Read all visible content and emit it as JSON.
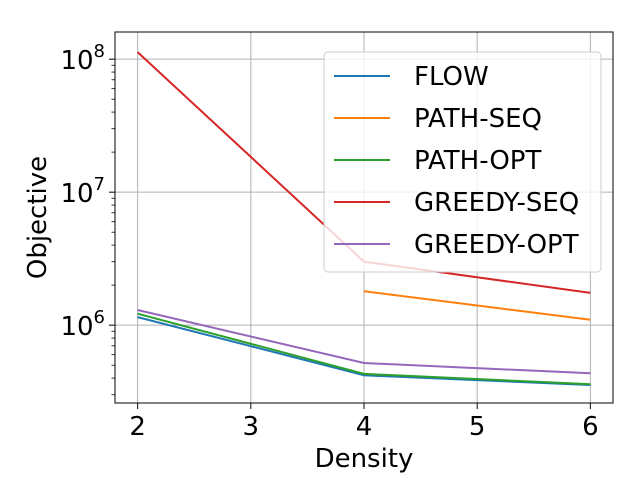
{
  "chart_data": {
    "type": "line",
    "xlabel": "Density",
    "ylabel": "Objective",
    "xlim": [
      1.8,
      6.2
    ],
    "ylim": [
      260000,
      160000000
    ],
    "yscale": "log",
    "grid": true,
    "legend": "top-right",
    "x_ticks": [
      {
        "value": 2,
        "label": "2"
      },
      {
        "value": 3,
        "label": "3"
      },
      {
        "value": 4,
        "label": "4"
      },
      {
        "value": 5,
        "label": "5"
      },
      {
        "value": 6,
        "label": "6"
      }
    ],
    "y_ticks": [
      {
        "value": 1000000,
        "base": "10",
        "exp": "6"
      },
      {
        "value": 10000000,
        "base": "10",
        "exp": "7"
      },
      {
        "value": 100000000,
        "base": "10",
        "exp": "8"
      }
    ],
    "series": [
      {
        "name": "FLOW",
        "color": "#1f77b4",
        "x": [
          2,
          4,
          6
        ],
        "y": [
          1150000,
          420000,
          355000
        ]
      },
      {
        "name": "PATH-SEQ",
        "color": "#ff7f0e",
        "x": [
          4,
          6
        ],
        "y": [
          1800000,
          1100000
        ]
      },
      {
        "name": "PATH-OPT",
        "color": "#2ca02c",
        "x": [
          2,
          4,
          6
        ],
        "y": [
          1220000,
          430000,
          360000
        ]
      },
      {
        "name": "GREEDY-SEQ",
        "color": "#d62728",
        "x": [
          2,
          4,
          6
        ],
        "y": [
          113000000,
          3000000,
          1750000
        ]
      },
      {
        "name": "GREEDY-OPT",
        "color": "#9467bd",
        "x": [
          2,
          4,
          6
        ],
        "y": [
          1300000,
          520000,
          435000
        ]
      }
    ]
  }
}
